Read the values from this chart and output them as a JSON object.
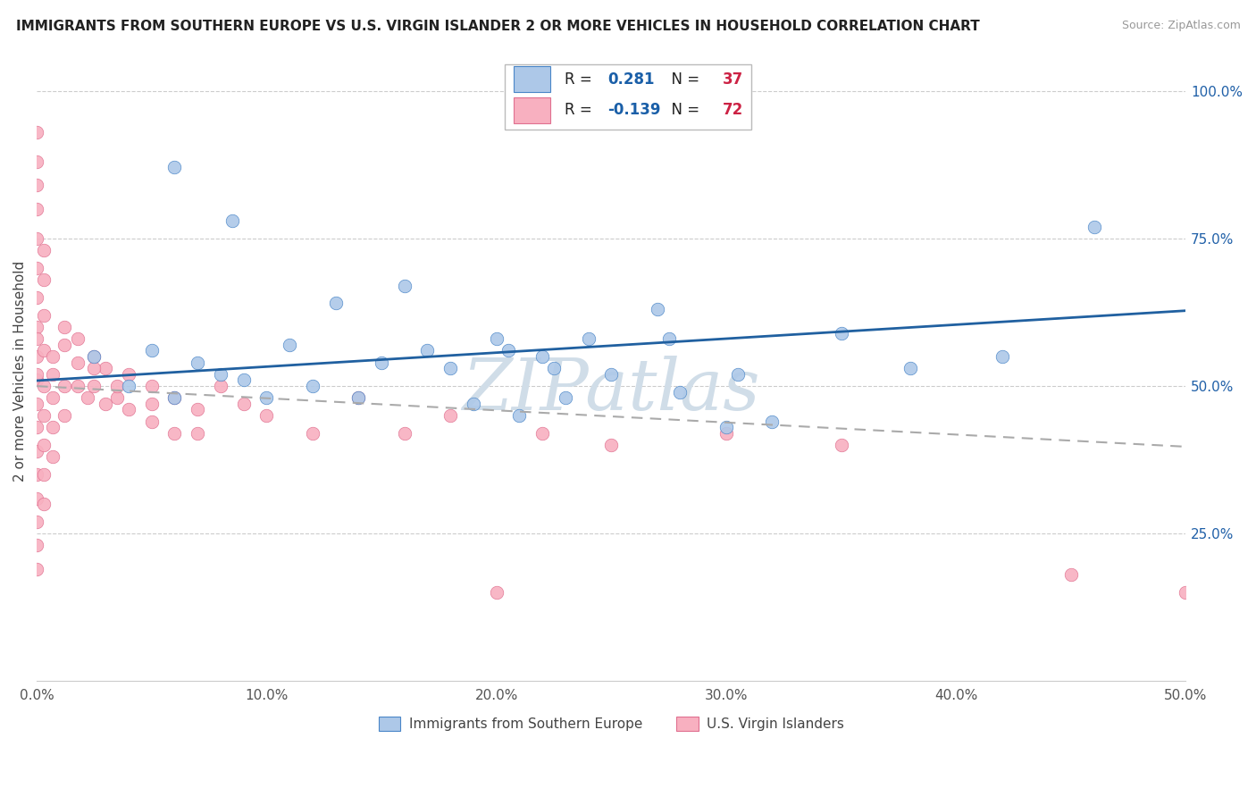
{
  "title": "IMMIGRANTS FROM SOUTHERN EUROPE VS U.S. VIRGIN ISLANDER 2 OR MORE VEHICLES IN HOUSEHOLD CORRELATION CHART",
  "source": "Source: ZipAtlas.com",
  "ylabel": "2 or more Vehicles in Household",
  "xlim": [
    0.0,
    0.5
  ],
  "ylim": [
    0.0,
    1.05
  ],
  "xtick_vals": [
    0.0,
    0.1,
    0.2,
    0.3,
    0.4,
    0.5
  ],
  "xtick_labels": [
    "0.0%",
    "10.0%",
    "20.0%",
    "30.0%",
    "40.0%",
    "50.0%"
  ],
  "ytick_right_vals": [
    0.25,
    0.5,
    0.75,
    1.0
  ],
  "ytick_right_labels": [
    "25.0%",
    "50.0%",
    "75.0%",
    "100.0%"
  ],
  "blue_R": 0.281,
  "blue_N": 37,
  "pink_R": -0.139,
  "pink_N": 72,
  "blue_color": "#adc8e8",
  "blue_edge_color": "#4a86c8",
  "blue_line_color": "#2060a0",
  "pink_color": "#f8b0c0",
  "pink_edge_color": "#e07090",
  "pink_line_color": "#d04060",
  "R_label_color": "#1a5fa8",
  "N_label_color": "#cc2244",
  "watermark_color": "#d0dde8",
  "blue_x": [
    0.025,
    0.04,
    0.05,
    0.06,
    0.07,
    0.08,
    0.09,
    0.1,
    0.11,
    0.12,
    0.13,
    0.14,
    0.15,
    0.16,
    0.17,
    0.18,
    0.19,
    0.2,
    0.205,
    0.21,
    0.22,
    0.225,
    0.23,
    0.24,
    0.25,
    0.27,
    0.275,
    0.28,
    0.3,
    0.305,
    0.32,
    0.35,
    0.38,
    0.42,
    0.46,
    0.06,
    0.085
  ],
  "blue_y": [
    0.55,
    0.5,
    0.56,
    0.48,
    0.54,
    0.52,
    0.51,
    0.48,
    0.57,
    0.5,
    0.64,
    0.48,
    0.54,
    0.67,
    0.56,
    0.53,
    0.47,
    0.58,
    0.56,
    0.45,
    0.55,
    0.53,
    0.48,
    0.58,
    0.52,
    0.63,
    0.58,
    0.49,
    0.43,
    0.52,
    0.44,
    0.59,
    0.53,
    0.55,
    0.77,
    0.87,
    0.78
  ],
  "pink_x": [
    0.0,
    0.0,
    0.0,
    0.0,
    0.0,
    0.0,
    0.0,
    0.0,
    0.0,
    0.0,
    0.0,
    0.0,
    0.0,
    0.0,
    0.0,
    0.0,
    0.0,
    0.0,
    0.0,
    0.0,
    0.003,
    0.003,
    0.003,
    0.003,
    0.003,
    0.003,
    0.003,
    0.003,
    0.007,
    0.007,
    0.007,
    0.007,
    0.012,
    0.012,
    0.012,
    0.018,
    0.018,
    0.022,
    0.025,
    0.025,
    0.03,
    0.03,
    0.035,
    0.04,
    0.04,
    0.05,
    0.05,
    0.06,
    0.06,
    0.07,
    0.07,
    0.08,
    0.09,
    0.1,
    0.12,
    0.14,
    0.16,
    0.18,
    0.2,
    0.22,
    0.25,
    0.3,
    0.35,
    0.45,
    0.5,
    0.003,
    0.007,
    0.012,
    0.018,
    0.025,
    0.035,
    0.05
  ],
  "pink_y": [
    0.93,
    0.88,
    0.84,
    0.8,
    0.75,
    0.7,
    0.65,
    0.6,
    0.55,
    0.51,
    0.47,
    0.43,
    0.39,
    0.35,
    0.31,
    0.27,
    0.23,
    0.19,
    0.58,
    0.52,
    0.73,
    0.68,
    0.62,
    0.56,
    0.5,
    0.45,
    0.4,
    0.35,
    0.52,
    0.48,
    0.43,
    0.38,
    0.57,
    0.5,
    0.45,
    0.54,
    0.5,
    0.48,
    0.55,
    0.5,
    0.53,
    0.47,
    0.48,
    0.52,
    0.46,
    0.5,
    0.44,
    0.48,
    0.42,
    0.46,
    0.42,
    0.5,
    0.47,
    0.45,
    0.42,
    0.48,
    0.42,
    0.45,
    0.15,
    0.42,
    0.4,
    0.42,
    0.4,
    0.18,
    0.15,
    0.3,
    0.55,
    0.6,
    0.58,
    0.53,
    0.5,
    0.47
  ]
}
